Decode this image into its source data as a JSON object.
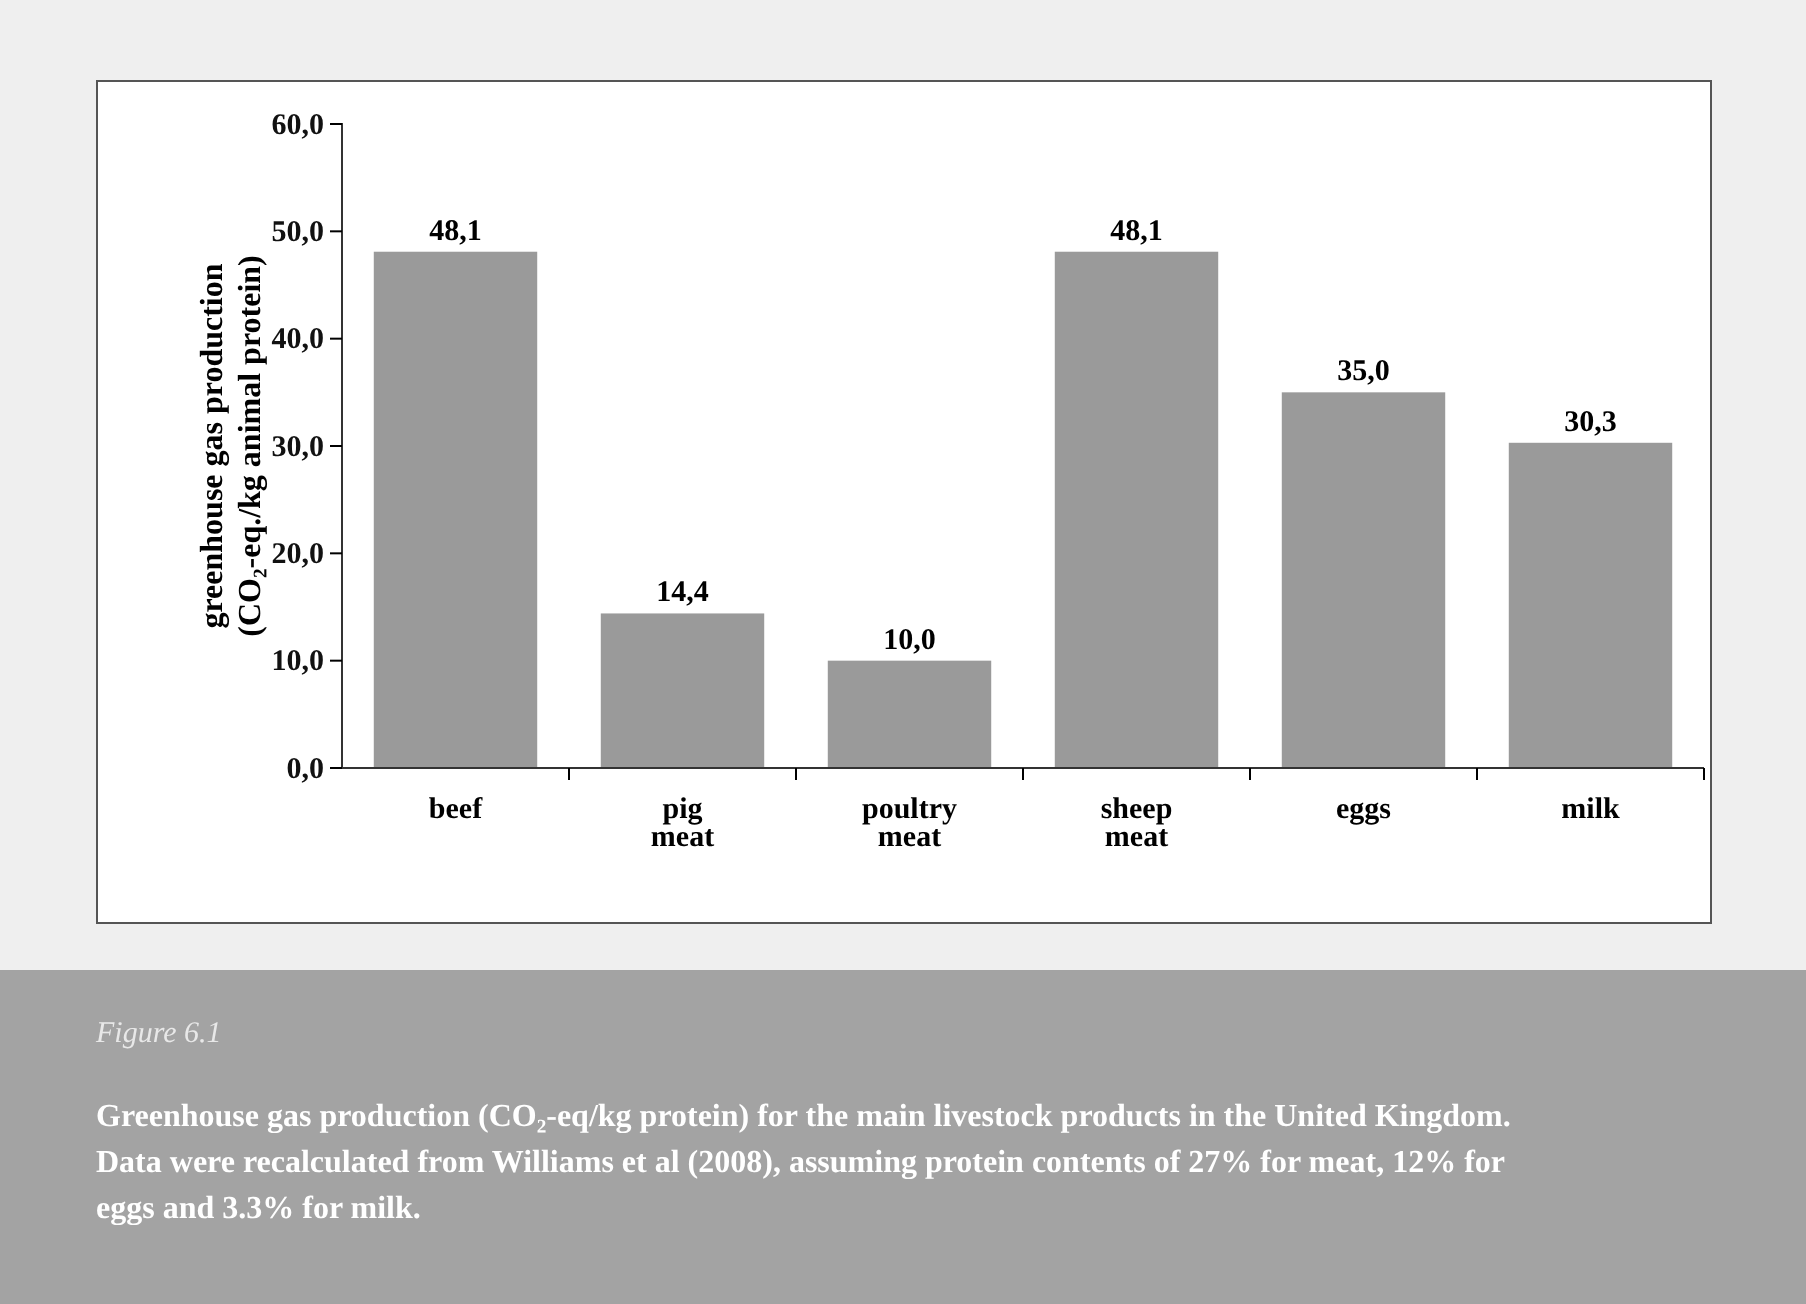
{
  "chart_data": {
    "type": "bar",
    "categories": [
      "beef",
      "pig\nmeat",
      "poultry\nmeat",
      "sheep\nmeat",
      "eggs",
      "milk"
    ],
    "values": [
      48.1,
      14.4,
      10.0,
      48.1,
      35.0,
      30.3
    ],
    "value_labels": [
      "48,1",
      "14,4",
      "10,0",
      "48,1",
      "35,0",
      "30,3"
    ],
    "color": "#9a9a9a",
    "ylabel": "greenhouse gas production\n(CO₂-eq./kg animal protein)",
    "ylim": [
      0,
      60
    ],
    "yticks": [
      {
        "value": 0,
        "label": "0,0"
      },
      {
        "value": 10,
        "label": "10,0"
      },
      {
        "value": 20,
        "label": "20,0"
      },
      {
        "value": 30,
        "label": "30,0"
      },
      {
        "value": 40,
        "label": "40,0"
      },
      {
        "value": 50,
        "label": "50,0"
      },
      {
        "value": 60,
        "label": "60,0"
      }
    ],
    "grid": false,
    "annotations": [
      "Figure 6.1",
      "Greenhouse gas production (CO₂-eq/kg protein) for the main livestock products in the United Kingdom. Data were recalculated from Williams et al (2008), assuming protein contents of 27% for meat, 12% for eggs and 3.3% for milk."
    ]
  }
}
